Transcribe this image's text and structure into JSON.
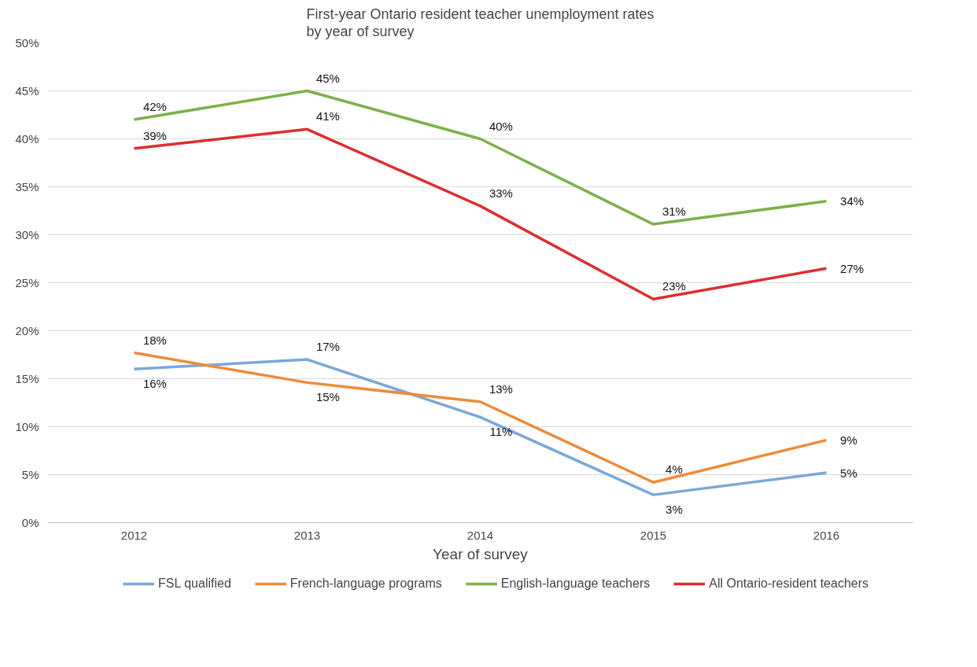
{
  "chart_data": {
    "type": "line",
    "title": "First-year Ontario resident teacher unemployment rates\nby year of survey",
    "xlabel": "Year of survey",
    "categories": [
      "2012",
      "2013",
      "2014",
      "2015",
      "2016"
    ],
    "series": [
      {
        "name": "FSL qualified",
        "color": "#7ba7d7",
        "values": [
          16,
          17,
          11,
          2.9,
          5.2
        ],
        "value_labels": [
          "16%",
          "17%",
          "11%",
          "3%",
          "5%"
        ]
      },
      {
        "name": "French-language programs",
        "color": "#ed8b3a",
        "values": [
          17.7,
          14.6,
          12.6,
          4.2,
          8.6
        ],
        "value_labels": [
          "18%",
          "15%",
          "13%",
          "4%",
          "9%"
        ]
      },
      {
        "name": "English-language teachers",
        "color": "#7eb04a",
        "values": [
          42,
          45,
          40,
          31.1,
          33.5
        ],
        "value_labels": [
          "42%",
          "45%",
          "40%",
          "31%",
          "34%"
        ]
      },
      {
        "name": "All Ontario-resident teachers",
        "color": "#dc2f2f",
        "values": [
          39,
          41,
          33,
          23.3,
          26.5
        ],
        "value_labels": [
          "39%",
          "41%",
          "33%",
          "23%",
          "27%"
        ]
      }
    ],
    "ylim": [
      0,
      50
    ],
    "yticks": [
      {
        "value": 0,
        "label": "0%"
      },
      {
        "value": 5,
        "label": "5%"
      },
      {
        "value": 10,
        "label": "10%"
      },
      {
        "value": 15,
        "label": "15%"
      },
      {
        "value": 20,
        "label": "20%"
      },
      {
        "value": 25,
        "label": "25%"
      },
      {
        "value": 30,
        "label": "30%"
      },
      {
        "value": 35,
        "label": "35%"
      },
      {
        "value": 40,
        "label": "40%"
      },
      {
        "value": 45,
        "label": "45%"
      },
      {
        "value": 50,
        "label": "50%"
      }
    ],
    "grid": "y",
    "legend": "bottom",
    "marker": "none",
    "line_style": "solid"
  }
}
